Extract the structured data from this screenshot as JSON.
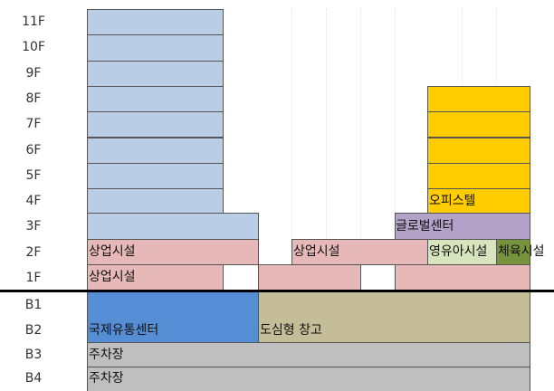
{
  "floors": [
    "11F",
    "10F",
    "9F",
    "8F",
    "7F",
    "6F",
    "5F",
    "4F",
    "3F",
    "2F",
    "1F",
    "B1",
    "B2",
    "B3",
    "B4"
  ],
  "blocks": {
    "officetel": "오피스텔",
    "global_center": "글로벌센터",
    "commercial_2f_left": "상업시설",
    "commercial_2f_mid": "상업시설",
    "childcare": "영유아시설",
    "sports": "체육시설",
    "commercial_1f": "상업시설",
    "distribution_center": "국제유통센터",
    "urban_warehouse": "도심형 창고",
    "parking_b3": "주차장",
    "parking_b4": "주차장"
  }
}
